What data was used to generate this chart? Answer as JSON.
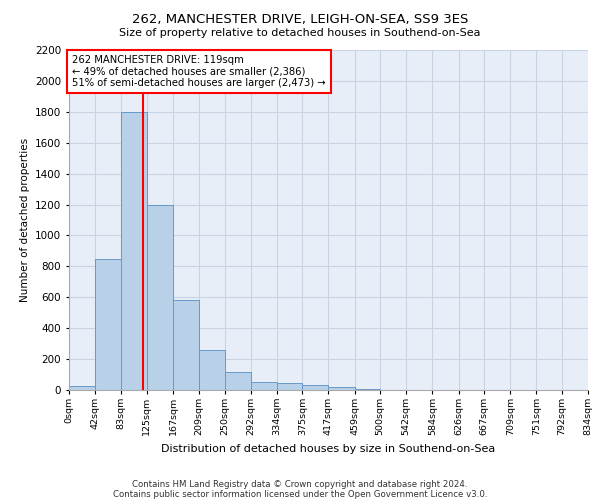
{
  "title1": "262, MANCHESTER DRIVE, LEIGH-ON-SEA, SS9 3ES",
  "title2": "Size of property relative to detached houses in Southend-on-Sea",
  "xlabel": "Distribution of detached houses by size in Southend-on-Sea",
  "ylabel": "Number of detached properties",
  "footnote1": "Contains HM Land Registry data © Crown copyright and database right 2024.",
  "footnote2": "Contains public sector information licensed under the Open Government Licence v3.0.",
  "bin_edges": [
    0,
    42,
    83,
    125,
    167,
    209,
    250,
    292,
    334,
    375,
    417,
    459,
    500,
    542,
    584,
    626,
    667,
    709,
    751,
    792,
    834
  ],
  "bar_heights": [
    25,
    850,
    1800,
    1200,
    585,
    260,
    115,
    50,
    45,
    30,
    20,
    5,
    0,
    0,
    0,
    0,
    0,
    0,
    0,
    0
  ],
  "bar_color": "#b8d0e8",
  "bar_edge_color": "#6699cc",
  "grid_color": "#c8d4e4",
  "bg_color": "#e8eef8",
  "vline_x": 119,
  "vline_color": "red",
  "annotation_text": "262 MANCHESTER DRIVE: 119sqm\n← 49% of detached houses are smaller (2,386)\n51% of semi-detached houses are larger (2,473) →",
  "annotation_box_color": "white",
  "annotation_box_edge": "red",
  "ylim": [
    0,
    2200
  ],
  "yticks": [
    0,
    200,
    400,
    600,
    800,
    1000,
    1200,
    1400,
    1600,
    1800,
    2000,
    2200
  ],
  "tick_labels": [
    "0sqm",
    "42sqm",
    "83sqm",
    "125sqm",
    "167sqm",
    "209sqm",
    "250sqm",
    "292sqm",
    "334sqm",
    "375sqm",
    "417sqm",
    "459sqm",
    "500sqm",
    "542sqm",
    "584sqm",
    "626sqm",
    "667sqm",
    "709sqm",
    "751sqm",
    "792sqm",
    "834sqm"
  ]
}
